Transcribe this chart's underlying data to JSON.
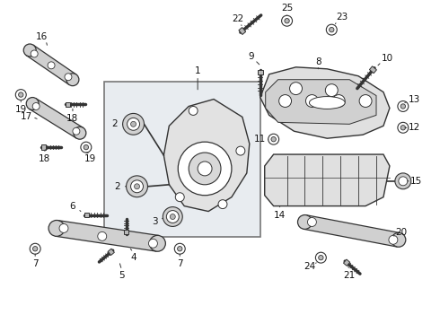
{
  "bg_color": "#ffffff",
  "lc": "#333333",
  "gray1": "#d0d0d0",
  "gray2": "#b8b8b8",
  "box_fill": "#e8ecf0",
  "figsize": [
    4.9,
    3.6
  ],
  "dpi": 100
}
